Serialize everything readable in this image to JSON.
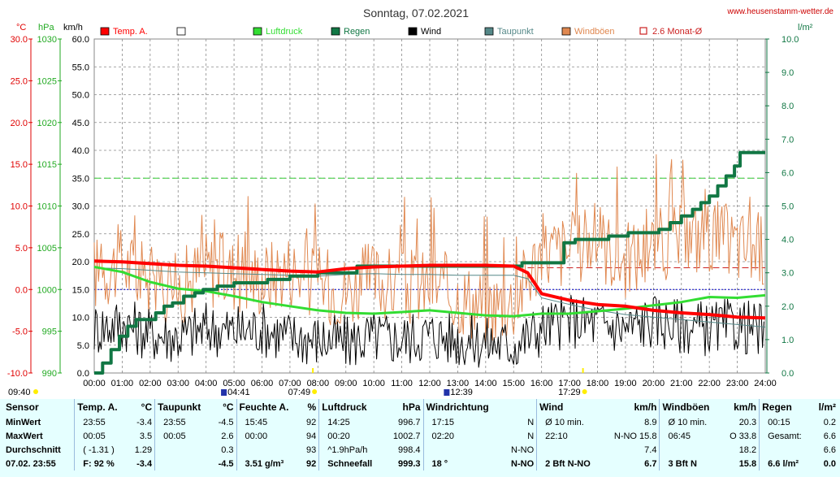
{
  "header": {
    "title": "Sonntag, 07.02.2021",
    "site": "www.heusenstamm-wetter.de",
    "unit_temp": "°C",
    "unit_hpa": "hPa",
    "unit_kmh": "km/h",
    "unit_rain": "l/m²"
  },
  "legend": [
    {
      "label": "Temp. A.",
      "color": "#ff0000",
      "type": "box"
    },
    {
      "label": "",
      "color": "#ffffff",
      "type": "box"
    },
    {
      "label": "Luftdruck",
      "color": "#33dd33",
      "type": "box"
    },
    {
      "label": "Regen",
      "color": "#117744",
      "type": "box"
    },
    {
      "label": "Wind",
      "color": "#000000",
      "type": "box"
    },
    {
      "label": "Taupunkt",
      "color": "#558888",
      "type": "box"
    },
    {
      "label": "Windböen",
      "color": "#e08850",
      "type": "box"
    },
    {
      "label": "2.6 Monat-Ø",
      "color": "#cc2222",
      "type": "outline"
    }
  ],
  "axes": {
    "temp_ticks": [
      "30.0",
      "25.0",
      "20.0",
      "15.0",
      "10.0",
      "5.0",
      "0.0",
      "-5.0",
      "-10.0"
    ],
    "hpa_ticks": [
      "1030",
      "1025",
      "1020",
      "1015",
      "1010",
      "1005",
      "1000",
      "995",
      "990"
    ],
    "kmh_ticks": [
      "60.0",
      "55.0",
      "50.0",
      "45.0",
      "40.0",
      "35.0",
      "30.0",
      "25.0",
      "20.0",
      "15.0",
      "10.0",
      "5.0",
      "0.0"
    ],
    "rain_ticks": [
      "10.0",
      "9.0",
      "8.0",
      "7.0",
      "6.0",
      "5.0",
      "4.0",
      "3.0",
      "2.0",
      "1.0",
      "0.0"
    ],
    "time_ticks": [
      "00:00",
      "01:00",
      "02:00",
      "03:00",
      "04:00",
      "05:00",
      "06:00",
      "07:00",
      "08:00",
      "09:00",
      "10:00",
      "11:00",
      "12:00",
      "13:00",
      "14:00",
      "15:00",
      "16:00",
      "17:00",
      "18:00",
      "19:00",
      "20:00",
      "21:00",
      "22:00",
      "23:00",
      "24:00"
    ],
    "events": [
      {
        "label": "09:40",
        "h": 0,
        "kind": "sunlabel"
      },
      {
        "label": "04:41",
        "h": 4.68,
        "kind": "moon"
      },
      {
        "label": "07:49",
        "h": 7.82,
        "kind": "sun"
      },
      {
        "label": "12:39",
        "h": 12.65,
        "kind": "moon"
      },
      {
        "label": "17:29",
        "h": 17.48,
        "kind": "sun"
      }
    ]
  },
  "chart_data": {
    "type": "line",
    "title": "Sonntag, 07.02.2021",
    "x_unit": "hours",
    "xlim": [
      0,
      24
    ],
    "ylim_temp": [
      -10,
      30
    ],
    "ylim_hpa": [
      990,
      1030
    ],
    "ylim_kmh": [
      0,
      60
    ],
    "ylim_rain": [
      0,
      10
    ],
    "grid": true,
    "series": [
      {
        "name": "Temp. A.",
        "axis": "temp",
        "color": "#ff0000",
        "width": 4,
        "x": [
          0,
          1,
          2,
          3,
          4,
          5,
          6,
          7,
          8,
          9,
          10,
          11,
          12,
          13,
          14,
          15,
          15.5,
          16,
          17,
          18,
          19,
          20,
          21,
          22,
          23,
          24
        ],
        "y": [
          3.4,
          3.3,
          3.1,
          2.9,
          2.8,
          2.6,
          2.4,
          2.2,
          2.1,
          2.5,
          2.7,
          2.8,
          2.9,
          2.9,
          2.9,
          2.8,
          2.0,
          -0.5,
          -1.3,
          -1.8,
          -2.0,
          -2.5,
          -2.8,
          -3.0,
          -3.3,
          -3.4
        ]
      },
      {
        "name": "Taupunkt",
        "axis": "temp",
        "color": "#558888",
        "width": 1,
        "x": [
          0,
          1,
          2,
          3,
          4,
          5,
          6,
          7,
          8,
          9,
          10,
          11,
          12,
          13,
          14,
          15,
          15.5,
          16,
          17,
          18,
          19,
          20,
          21,
          22,
          23,
          24
        ],
        "y": [
          2.6,
          2.5,
          2.3,
          2.1,
          2.0,
          1.9,
          1.8,
          1.7,
          1.6,
          1.8,
          1.9,
          1.8,
          1.8,
          1.7,
          1.7,
          1.7,
          1.3,
          -1.0,
          -1.8,
          -2.5,
          -3.0,
          -3.3,
          -3.6,
          -3.9,
          -4.2,
          -4.5
        ]
      },
      {
        "name": "Luftdruck",
        "axis": "hpa",
        "color": "#33dd33",
        "width": 3,
        "x": [
          0,
          1,
          2,
          3,
          4,
          5,
          6,
          7,
          8,
          9,
          10,
          11,
          12,
          13,
          14,
          15,
          16,
          17,
          18,
          19,
          20,
          21,
          22,
          23,
          24
        ],
        "y": [
          1002.7,
          1002.1,
          1000.9,
          1000.1,
          999.8,
          999.2,
          998.5,
          998.0,
          997.5,
          997.2,
          997.1,
          997.3,
          997.5,
          997.2,
          996.9,
          996.8,
          997.1,
          997.1,
          997.4,
          997.7,
          998.1,
          998.5,
          999.1,
          999.0,
          999.3
        ]
      },
      {
        "name": "Regen",
        "axis": "rain",
        "color": "#117744",
        "width": 4,
        "step": true,
        "x": [
          0,
          0.3,
          0.6,
          0.9,
          1.2,
          1.5,
          2.2,
          2.5,
          2.8,
          3.2,
          3.6,
          3.9,
          4.4,
          5.0,
          6.2,
          7.0,
          8.0,
          9.4,
          15.1,
          15.3,
          16.8,
          17.2,
          18.4,
          19.1,
          20.2,
          20.6,
          21.0,
          21.4,
          21.7,
          22.0,
          22.3,
          22.6,
          22.9,
          23.1,
          24.0
        ],
        "y": [
          0.0,
          0.3,
          0.7,
          1.1,
          1.4,
          1.6,
          1.8,
          2.0,
          2.1,
          2.3,
          2.4,
          2.5,
          2.6,
          2.7,
          2.8,
          2.9,
          3.0,
          3.2,
          3.2,
          3.3,
          3.9,
          4.0,
          4.1,
          4.2,
          4.3,
          4.5,
          4.7,
          4.9,
          5.1,
          5.3,
          5.6,
          5.9,
          6.2,
          6.6,
          6.6
        ]
      },
      {
        "name": "Wind",
        "axis": "kmh",
        "color": "#000000",
        "width": 1,
        "noise": true,
        "x": [
          0,
          1,
          2,
          3,
          4,
          5,
          6,
          7,
          8,
          9,
          10,
          11,
          12,
          13,
          14,
          15,
          16,
          17,
          18,
          19,
          20,
          21,
          22,
          23,
          24
        ],
        "y": [
          8.0,
          9.0,
          7.0,
          6.5,
          8.0,
          7.5,
          8.0,
          6.5,
          6.0,
          5.5,
          6.5,
          6.0,
          7.0,
          6.0,
          5.5,
          5.0,
          8.0,
          9.5,
          9.0,
          8.0,
          9.5,
          8.5,
          8.0,
          8.5,
          7.5
        ]
      },
      {
        "name": "Windböen",
        "axis": "kmh",
        "color": "#e08850",
        "width": 1,
        "noise": true,
        "x": [
          0,
          1,
          2,
          3,
          4,
          5,
          6,
          7,
          8,
          9,
          10,
          11,
          12,
          13,
          14,
          15,
          16,
          17,
          18,
          19,
          20,
          21,
          22,
          23,
          24
        ],
        "y": [
          18.0,
          20.0,
          16.0,
          15.0,
          19.0,
          18.0,
          17.0,
          19.0,
          16.0,
          15.0,
          17.0,
          15.0,
          16.0,
          14.0,
          12.0,
          13.0,
          22.0,
          22.0,
          24.0,
          20.0,
          23.0,
          24.0,
          25.0,
          23.0,
          22.0
        ]
      }
    ],
    "reference_lines": [
      {
        "name": "2.6 Monat-Ø",
        "axis": "temp",
        "value": 2.6,
        "color": "#cc2222",
        "from": 15.5
      },
      {
        "axis": "temp",
        "value": 0.0,
        "color": "#0000cc"
      },
      {
        "axis": "kmh",
        "value": 35.0,
        "color": "#33cc33"
      }
    ]
  },
  "stats": {
    "headers": {
      "sensor": "Sensor",
      "temp": "Temp. A.",
      "temp_u": "°C",
      "dew": "Taupunkt",
      "dew_u": "°C",
      "hum": "Feuchte A.",
      "hum_u": "%",
      "press": "Luftdruck",
      "press_u": "hPa",
      "dir": "Windrichtung",
      "wind": "Wind",
      "wind_u": "km/h",
      "gust": "Windböen",
      "gust_u": "km/h",
      "rain": "Regen",
      "rain_u": "l/m²"
    },
    "rows": [
      {
        "label": "MinWert",
        "c": [
          "23:55",
          "-3.4",
          "23:55",
          "-4.5",
          "15:45",
          "92",
          "14:25",
          "996.7",
          "17:15",
          "N",
          "Ø 10 min.",
          "8.9",
          "Ø 10 min.",
          "20.3",
          "00:15",
          "0.2"
        ]
      },
      {
        "label": "MaxWert",
        "c": [
          "00:05",
          "3.5",
          "00:05",
          "2.6",
          "00:00",
          "94",
          "00:20",
          "1002.7",
          "02:20",
          "N",
          "22:10",
          "N-NO 15.8",
          "06:45",
          "O 33.8",
          "Gesamt:",
          "6.6"
        ]
      },
      {
        "label": "Durchschnitt",
        "c": [
          "( -1.31 )",
          "1.29",
          "",
          "0.3",
          "",
          "93",
          "^1.9hPa/h",
          "998.4",
          "",
          "N-NO",
          "",
          "7.4",
          "",
          "18.2",
          "",
          "6.6"
        ]
      },
      {
        "label": "07.02. 23:55",
        "c": [
          "F: 92 %",
          "-3.4",
          "",
          "-4.5",
          "3.51 g/m³",
          "92",
          "Schneefall",
          "999.3",
          "18 °",
          "N-NO",
          "2 Bft N-NO",
          "6.7",
          "3 Bft N",
          "15.8",
          "6.6 l/m²",
          "0.0"
        ]
      }
    ]
  }
}
